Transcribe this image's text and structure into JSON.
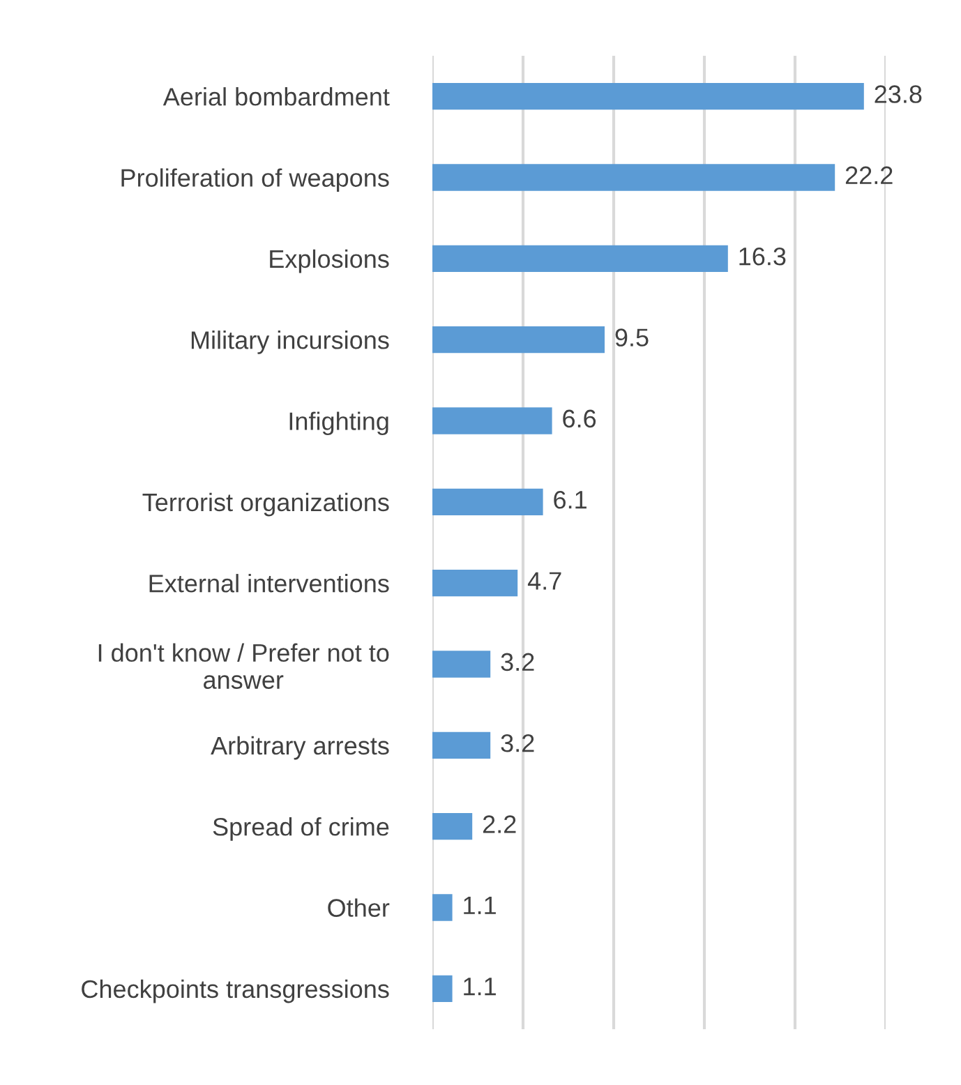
{
  "chart_data": {
    "type": "bar",
    "orientation": "horizontal",
    "categories": [
      "Aerial bombardment",
      "Proliferation of weapons",
      "Explosions",
      "Military incursions",
      "Infighting",
      "Terrorist organizations",
      "External interventions",
      "I don't know / Prefer not to\nanswer",
      "Arbitrary arrests",
      "Spread of crime",
      "Other",
      "Checkpoints transgressions"
    ],
    "values": [
      23.8,
      22.2,
      16.3,
      9.5,
      6.6,
      6.1,
      4.7,
      3.2,
      3.2,
      2.2,
      1.1,
      1.1
    ],
    "color": "#5b9bd5",
    "xlim": [
      0,
      25
    ],
    "xticks": [
      {
        "value": 0,
        "label": null
      },
      {
        "value": 5,
        "label": null
      },
      {
        "value": 10,
        "label": null
      },
      {
        "value": 15,
        "label": null
      },
      {
        "value": 20,
        "label": null
      },
      {
        "value": 25,
        "label": null
      }
    ],
    "tick_labels": "y",
    "grid": "x",
    "data_labels": true
  }
}
